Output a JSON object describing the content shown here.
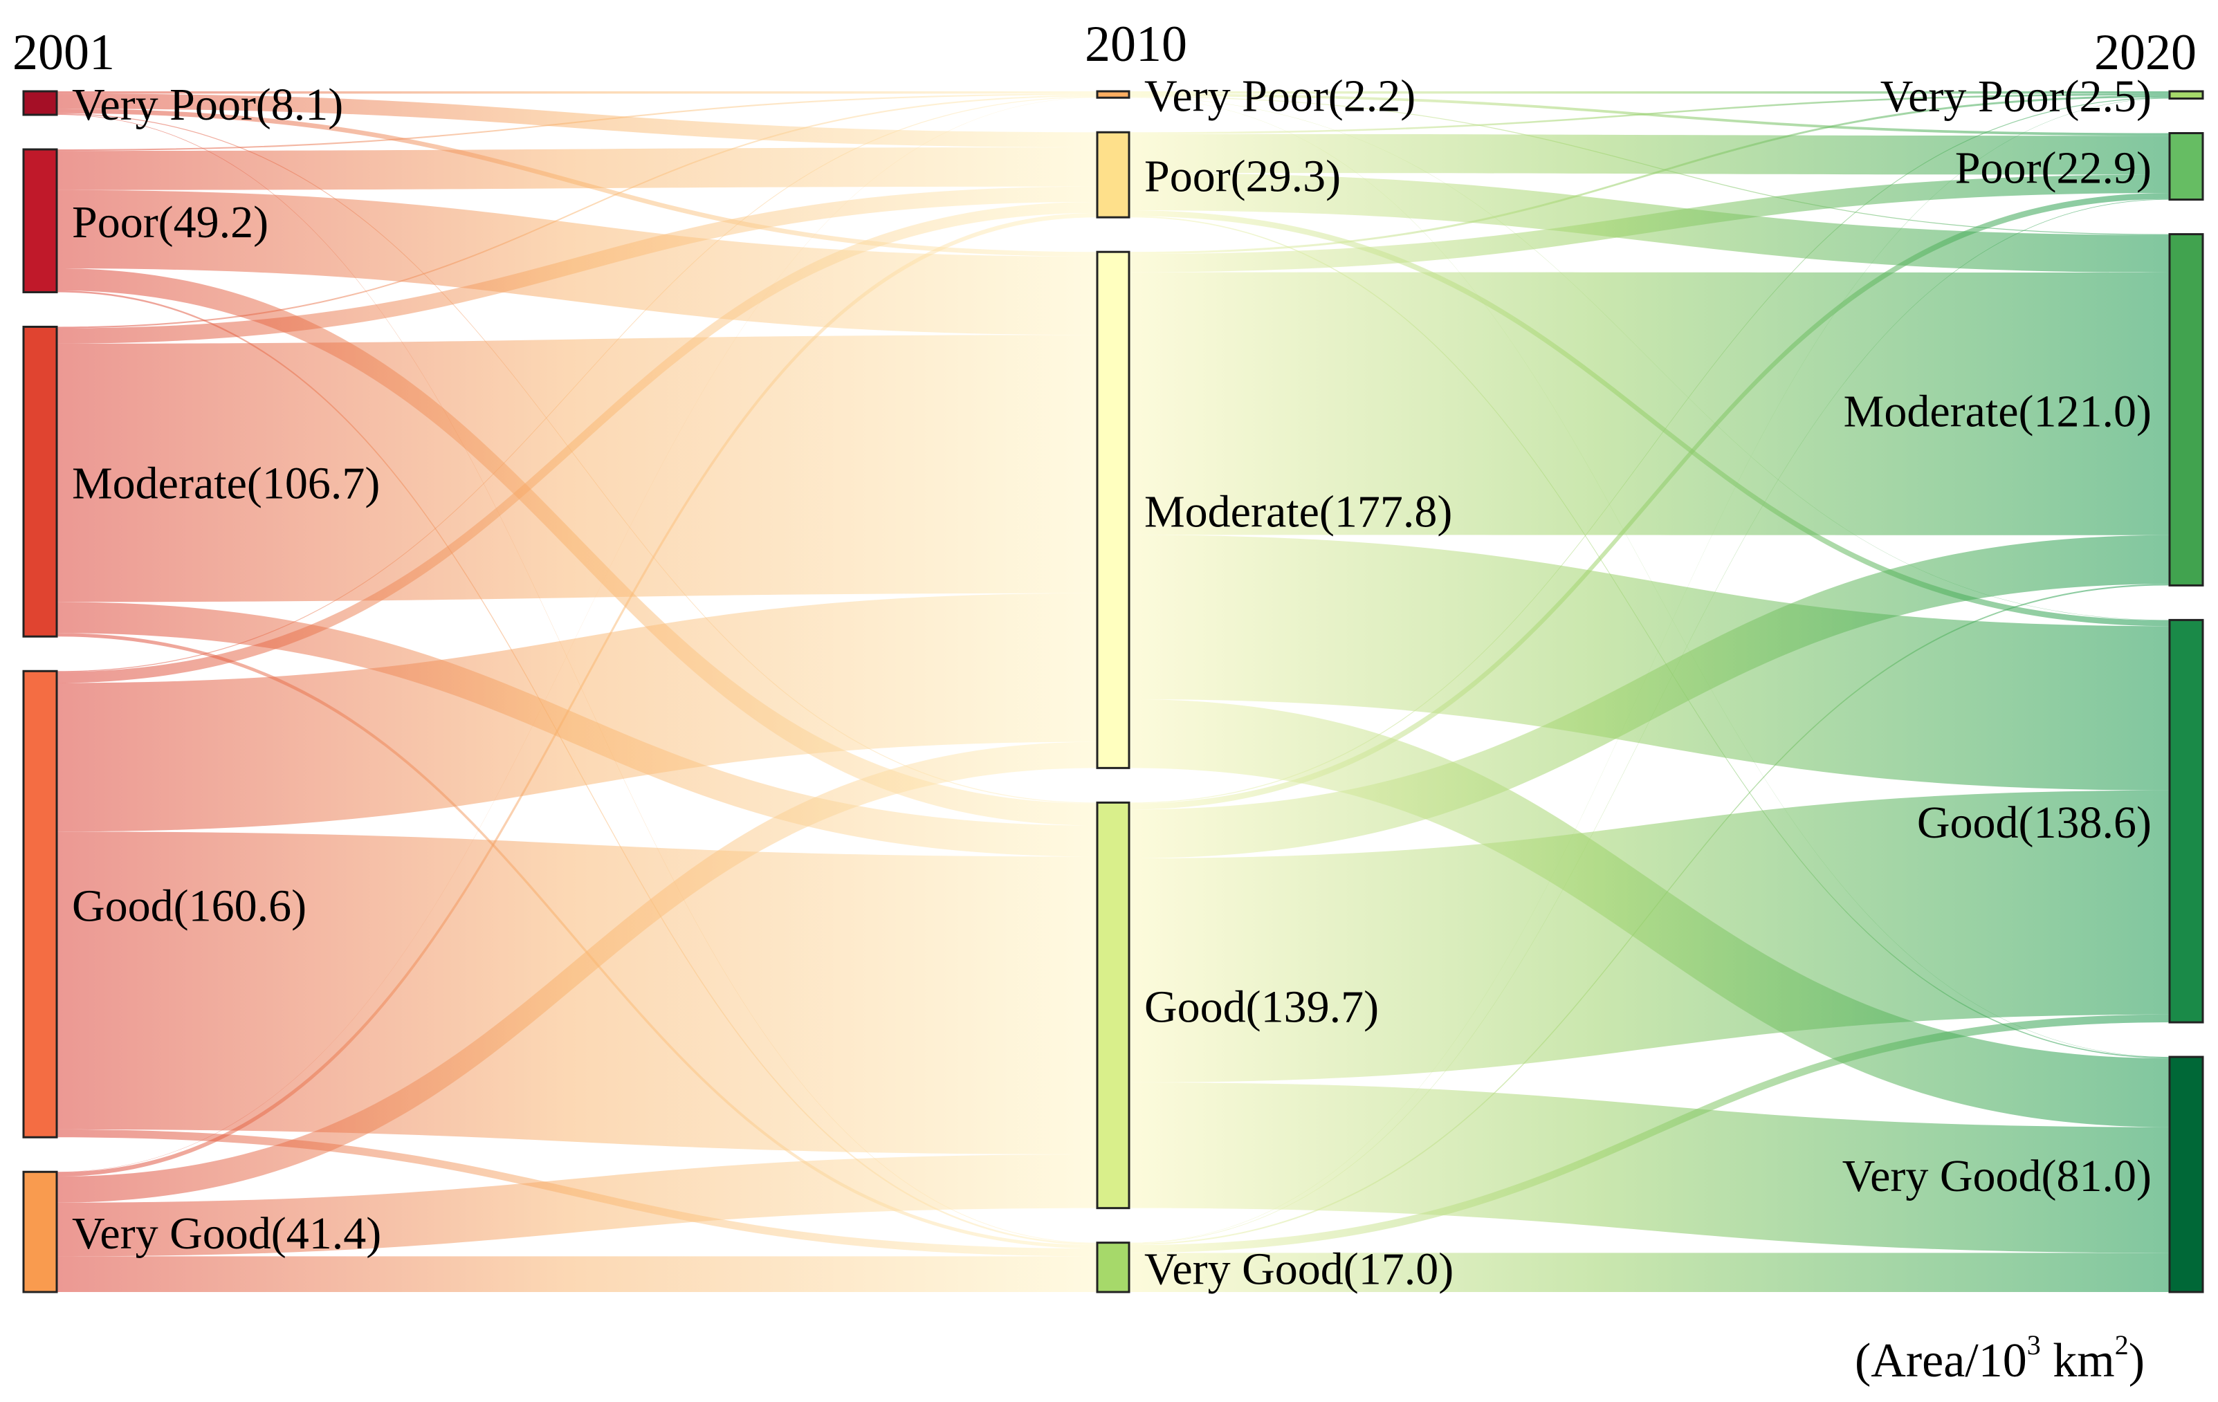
{
  "chart_data": {
    "type": "sankey",
    "title": "",
    "unit": {
      "prefix": "(Area/10",
      "sup1": "3",
      "mid": " km",
      "sup2": "2",
      "suffix": ")"
    },
    "years": [
      "2001",
      "2010",
      "2020"
    ],
    "colors": {
      "2001": [
        "#a50f26",
        "#c0192a",
        "#e04430",
        "#f46d43",
        "#f99b4f"
      ],
      "2010": [
        "#fdae61",
        "#fee08b",
        "#ffffbf",
        "#d9ef8b",
        "#a6d96a"
      ],
      "2020": [
        "#a6d96a",
        "#66bd63",
        "#41a34f",
        "#1a8a48",
        "#006837"
      ]
    },
    "nodes": {
      "2001": [
        {
          "name": "Very Poor",
          "value": 8.1,
          "label": "Very Poor(8.1)"
        },
        {
          "name": "Poor",
          "value": 49.2,
          "label": "Poor(49.2)"
        },
        {
          "name": "Moderate",
          "value": 106.7,
          "label": "Moderate(106.7)"
        },
        {
          "name": "Good",
          "value": 160.6,
          "label": "Good(160.6)"
        },
        {
          "name": "Very Good",
          "value": 41.4,
          "label": "Very Good(41.4)"
        }
      ],
      "2010": [
        {
          "name": "Very Poor",
          "value": 2.2,
          "label": "Very Poor(2.2)"
        },
        {
          "name": "Poor",
          "value": 29.3,
          "label": "Poor(29.3)"
        },
        {
          "name": "Moderate",
          "value": 177.8,
          "label": "Moderate(177.8)"
        },
        {
          "name": "Good",
          "value": 139.7,
          "label": "Good(139.7)"
        },
        {
          "name": "Very Good",
          "value": 17.0,
          "label": "Very Good(17.0)"
        }
      ],
      "2020": [
        {
          "name": "Very Poor",
          "value": 2.5,
          "label": "Very Poor(2.5)"
        },
        {
          "name": "Poor",
          "value": 22.9,
          "label": "Poor(22.9)"
        },
        {
          "name": "Moderate",
          "value": 121.0,
          "label": "Moderate(121.0)"
        },
        {
          "name": "Good",
          "value": 138.6,
          "label": "Good(138.6)"
        },
        {
          "name": "Very Good",
          "value": 81.0,
          "label": "Very Good(81.0)"
        }
      ]
    },
    "flows_2001_2010": [
      [
        0.8,
        5.2,
        1.6,
        0.3,
        0.2
      ],
      [
        0.5,
        13.5,
        27.0,
        7.6,
        0.6
      ],
      [
        0.5,
        5.3,
        89.0,
        10.7,
        1.2
      ],
      [
        0.3,
        3.8,
        51.2,
        102.6,
        2.7
      ],
      [
        0.1,
        1.5,
        9.0,
        18.5,
        12.3
      ]
    ],
    "flows_2010_2020": [
      [
        0.8,
        0.9,
        0.3,
        0.1,
        0.1
      ],
      [
        0.6,
        13.4,
        12.9,
        2.0,
        0.4
      ],
      [
        0.7,
        6.3,
        90.5,
        56.6,
        23.7
      ],
      [
        0.3,
        2.1,
        16.8,
        77.2,
        43.3
      ],
      [
        0.1,
        0.2,
        0.5,
        2.7,
        13.5
      ]
    ]
  }
}
